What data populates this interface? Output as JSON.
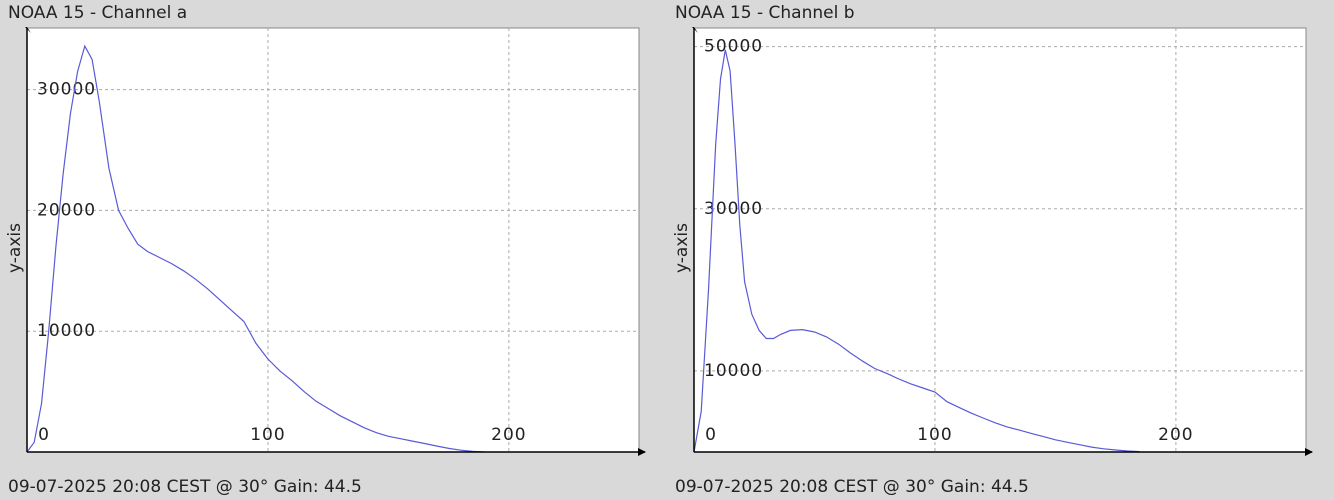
{
  "chart_data": [
    {
      "type": "line",
      "title": "NOAA 15 - Channel a",
      "footer": "09-07-2025 20:08 CEST @ 30° Gain: 44.5",
      "y_label": "y-axis",
      "x": [
        0,
        3,
        6,
        9,
        12,
        15,
        18,
        21,
        24,
        27,
        30,
        34,
        38,
        42,
        46,
        50,
        55,
        60,
        65,
        70,
        75,
        80,
        85,
        90,
        95,
        100,
        105,
        110,
        115,
        120,
        125,
        130,
        135,
        140,
        145,
        150,
        155,
        160,
        165,
        170,
        175,
        180,
        185,
        190
      ],
      "values": [
        0,
        800,
        4000,
        10000,
        17000,
        23000,
        28000,
        31500,
        33600,
        32500,
        29000,
        23500,
        20000,
        18500,
        17200,
        16600,
        16100,
        15600,
        15000,
        14300,
        13500,
        12600,
        11700,
        10800,
        9000,
        7700,
        6700,
        5900,
        5000,
        4200,
        3600,
        3000,
        2500,
        2000,
        1600,
        1300,
        1100,
        900,
        700,
        500,
        300,
        150,
        50,
        0
      ],
      "color": "#5a5ad6",
      "xlim": [
        0,
        254
      ],
      "ylim": [
        0,
        35100
      ],
      "xticks": [
        0,
        100,
        200
      ],
      "yticks": [
        10000,
        20000,
        30000
      ],
      "grid": true
    },
    {
      "type": "line",
      "title": "NOAA 15 - Channel b",
      "footer": "09-07-2025 20:08 CEST @ 30° Gain: 44.5",
      "y_label": "y-axis",
      "x": [
        0,
        3,
        6,
        9,
        11,
        13,
        15,
        17,
        19,
        21,
        24,
        27,
        30,
        33,
        36,
        40,
        45,
        50,
        55,
        60,
        65,
        70,
        75,
        80,
        85,
        90,
        95,
        100,
        105,
        110,
        115,
        120,
        125,
        130,
        135,
        140,
        145,
        150,
        155,
        160,
        165,
        170,
        175,
        180,
        185
      ],
      "values": [
        0,
        5000,
        20000,
        38000,
        46000,
        49600,
        47000,
        38000,
        28000,
        21000,
        17000,
        15000,
        14000,
        14000,
        14500,
        15000,
        15100,
        14800,
        14200,
        13300,
        12200,
        11200,
        10300,
        9700,
        9000,
        8400,
        7900,
        7400,
        6200,
        5500,
        4800,
        4200,
        3600,
        3100,
        2700,
        2300,
        1900,
        1500,
        1200,
        900,
        600,
        400,
        250,
        120,
        50
      ],
      "color": "#5a5ad6",
      "xlim": [
        0,
        254
      ],
      "ylim": [
        0,
        52300
      ],
      "xticks": [
        0,
        100,
        200
      ],
      "yticks": [
        10000,
        30000,
        50000
      ],
      "grid": true
    }
  ]
}
